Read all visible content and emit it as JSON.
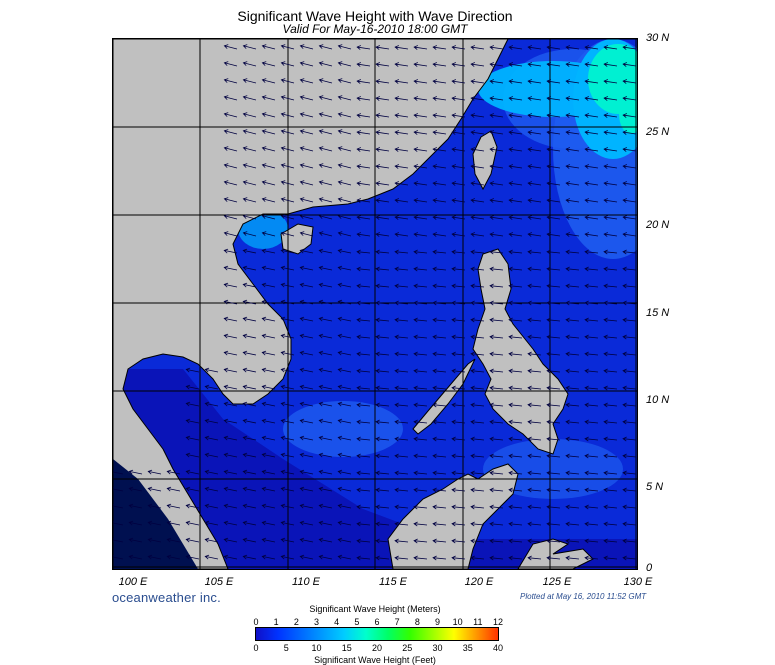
{
  "title": "Significant Wave Height with Wave Direction",
  "subtitle": "Valid For May-16-2010 18:00 GMT",
  "lat_labels": [
    "30 N",
    "25 N",
    "20 N",
    "15 N",
    "10 N",
    "5 N",
    "0"
  ],
  "lon_labels": [
    "100 E",
    "105 E",
    "110 E",
    "115 E",
    "120 E",
    "125 E",
    "130 E"
  ],
  "brand": "oceanweather inc.",
  "plotted": "Plotted at May 16, 2010 11:52 GMT",
  "legend": {
    "title_meters": "Significant Wave Height (Meters)",
    "title_feet": "Significant Wave Height (Feet)",
    "meter_ticks": [
      "0",
      "1",
      "2",
      "3",
      "4",
      "5",
      "6",
      "7",
      "8",
      "9",
      "10",
      "11",
      "12"
    ],
    "feet_ticks": [
      "0",
      "5",
      "10",
      "15",
      "20",
      "25",
      "30",
      "35",
      "40"
    ],
    "colors": [
      "#1010c8",
      "#0033ff",
      "#0066ff",
      "#0099ff",
      "#00ccff",
      "#00ffcc",
      "#00ff66",
      "#33ff00",
      "#99ff00",
      "#ffff00",
      "#ff9900",
      "#ff3300"
    ]
  },
  "colors": {
    "land": "#c0c0c0",
    "deep_sea": "#0a2ad8",
    "shelf_sea": "#0a14b8",
    "moderate": "#1e5cf0",
    "rough": "#00b4ff",
    "very_rough": "#00f0d2",
    "grid": "#000000",
    "arrow": "#000040"
  }
}
